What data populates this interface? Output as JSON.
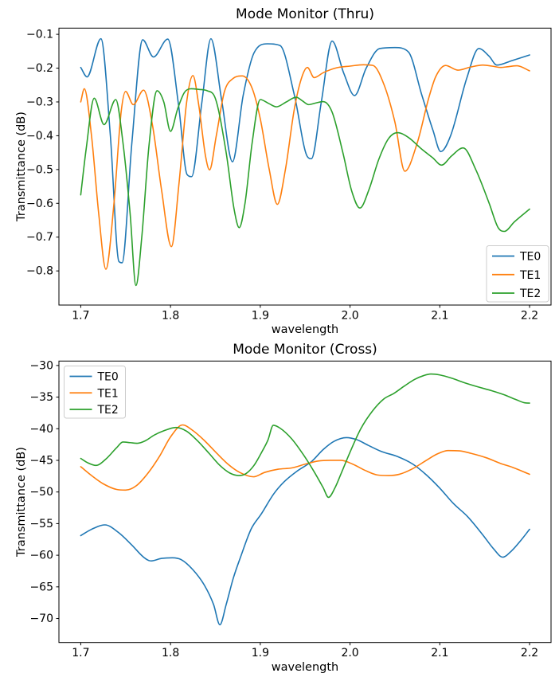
{
  "figure": {
    "background": "#ffffff"
  },
  "chart_data": [
    {
      "type": "line",
      "title": "Mode Monitor (Thru)",
      "xlabel": "wavelength",
      "ylabel": "Transmittance (dB)",
      "xlim": [
        1.6757,
        2.2239
      ],
      "ylim": [
        -0.901,
        -0.0816
      ],
      "grid": false,
      "x_ticks": {
        "values": [
          1.7,
          1.8,
          1.9,
          2.0,
          2.1,
          2.2
        ],
        "labels": [
          "1.7",
          "1.8",
          "1.9",
          "2.0",
          "2.1",
          "2.2"
        ]
      },
      "y_ticks": {
        "values": [
          -0.1,
          -0.2,
          -0.3,
          -0.4,
          -0.5,
          -0.6,
          -0.7,
          -0.8
        ],
        "labels": [
          "−0.1",
          "−0.2",
          "−0.3",
          "−0.4",
          "−0.5",
          "−0.6",
          "−0.7",
          "−0.8"
        ]
      },
      "legend": {
        "location": "lower right",
        "labels": [
          "TE0",
          "TE1",
          "TE2"
        ]
      },
      "series": [
        {
          "name": "TE0",
          "color": "#1f77b4",
          "x": [
            1.7,
            1.707,
            1.7225,
            1.733,
            1.7425,
            1.746,
            1.757,
            1.769,
            1.781,
            1.797,
            1.809,
            1.8185,
            1.8235,
            1.835,
            1.845,
            1.857,
            1.869,
            1.881,
            1.893,
            1.908,
            1.922,
            1.938,
            1.9525,
            1.957,
            1.968,
            1.98,
            1.993,
            2.005,
            2.018,
            2.033,
            2.05,
            2.065,
            2.08,
            2.0925,
            2.101,
            2.112,
            2.13,
            2.1435,
            2.155,
            2.1635,
            2.18,
            2.2
          ],
          "y": [
            -0.198,
            -0.226,
            -0.113,
            -0.4,
            -0.772,
            -0.776,
            -0.42,
            -0.116,
            -0.167,
            -0.114,
            -0.31,
            -0.515,
            -0.521,
            -0.3,
            -0.113,
            -0.295,
            -0.477,
            -0.28,
            -0.155,
            -0.128,
            -0.133,
            -0.28,
            -0.462,
            -0.468,
            -0.3,
            -0.12,
            -0.215,
            -0.281,
            -0.2,
            -0.142,
            -0.139,
            -0.152,
            -0.28,
            -0.385,
            -0.447,
            -0.4,
            -0.23,
            -0.142,
            -0.165,
            -0.191,
            -0.178,
            -0.161
          ]
        },
        {
          "name": "TE1",
          "color": "#ff7f0e",
          "x": [
            1.7,
            1.704,
            1.712,
            1.72,
            1.728,
            1.737,
            1.745,
            1.75,
            1.7585,
            1.77,
            1.78,
            1.79,
            1.801,
            1.8095,
            1.818,
            1.825,
            1.8315,
            1.839,
            1.8435,
            1.851,
            1.86,
            1.8695,
            1.88,
            1.891,
            1.9,
            1.91,
            1.919,
            1.928,
            1.938,
            1.9465,
            1.9525,
            1.96,
            1.9705,
            1.985,
            2.0,
            2.015,
            2.0255,
            2.038,
            2.05,
            2.061,
            2.075,
            2.0875,
            2.0955,
            2.1065,
            2.12,
            2.134,
            2.148,
            2.158,
            2.168,
            2.178,
            2.186,
            2.2
          ],
          "y": [
            -0.3,
            -0.261,
            -0.4,
            -0.63,
            -0.795,
            -0.6,
            -0.33,
            -0.269,
            -0.308,
            -0.265,
            -0.37,
            -0.56,
            -0.728,
            -0.54,
            -0.3,
            -0.222,
            -0.31,
            -0.46,
            -0.501,
            -0.4,
            -0.27,
            -0.231,
            -0.223,
            -0.26,
            -0.35,
            -0.5,
            -0.603,
            -0.5,
            -0.32,
            -0.225,
            -0.198,
            -0.228,
            -0.213,
            -0.199,
            -0.194,
            -0.19,
            -0.192,
            -0.25,
            -0.36,
            -0.505,
            -0.42,
            -0.29,
            -0.225,
            -0.192,
            -0.206,
            -0.197,
            -0.191,
            -0.194,
            -0.198,
            -0.195,
            -0.193,
            -0.208
          ]
        },
        {
          "name": "TE2",
          "color": "#2ca02c",
          "x": [
            1.7,
            1.706,
            1.715,
            1.726,
            1.739,
            1.747,
            1.755,
            1.7615,
            1.768,
            1.776,
            1.785,
            1.7925,
            1.8,
            1.808,
            1.8155,
            1.823,
            1.832,
            1.841,
            1.85,
            1.862,
            1.871,
            1.8765,
            1.883,
            1.891,
            1.9,
            1.909,
            1.918,
            1.929,
            1.94,
            1.947,
            1.954,
            1.962,
            1.97,
            1.98,
            1.992,
            2.002,
            2.011,
            2.021,
            2.032,
            2.043,
            2.053,
            2.065,
            2.08,
            2.092,
            2.102,
            2.113,
            2.126,
            2.14,
            2.155,
            2.165,
            2.172,
            2.183,
            2.2
          ],
          "y": [
            -0.575,
            -0.44,
            -0.289,
            -0.367,
            -0.293,
            -0.42,
            -0.63,
            -0.843,
            -0.7,
            -0.43,
            -0.267,
            -0.3,
            -0.387,
            -0.32,
            -0.272,
            -0.261,
            -0.263,
            -0.267,
            -0.29,
            -0.45,
            -0.62,
            -0.672,
            -0.6,
            -0.42,
            -0.293,
            -0.304,
            -0.3145,
            -0.3,
            -0.286,
            -0.297,
            -0.308,
            -0.303,
            -0.299,
            -0.33,
            -0.45,
            -0.565,
            -0.614,
            -0.56,
            -0.47,
            -0.408,
            -0.391,
            -0.405,
            -0.44,
            -0.465,
            -0.487,
            -0.46,
            -0.436,
            -0.5,
            -0.6,
            -0.672,
            -0.683,
            -0.655,
            -0.617
          ]
        }
      ]
    },
    {
      "type": "line",
      "title": "Mode Monitor (Cross)",
      "xlabel": "wavelength",
      "ylabel": "Transmittance (dB)",
      "xlim": [
        1.6757,
        2.2239
      ],
      "ylim": [
        -73.8,
        -29.3
      ],
      "grid": false,
      "x_ticks": {
        "values": [
          1.7,
          1.8,
          1.9,
          2.0,
          2.1,
          2.2
        ],
        "labels": [
          "1.7",
          "1.8",
          "1.9",
          "2.0",
          "2.1",
          "2.2"
        ]
      },
      "y_ticks": {
        "values": [
          -30,
          -35,
          -40,
          -45,
          -50,
          -55,
          -60,
          -65,
          -70
        ],
        "labels": [
          "−30",
          "−35",
          "−40",
          "−45",
          "−50",
          "−55",
          "−60",
          "−65",
          "−70"
        ]
      },
      "legend": {
        "location": "upper left",
        "labels": [
          "TE0",
          "TE1",
          "TE2"
        ]
      },
      "series": [
        {
          "name": "TE0",
          "color": "#1f77b4",
          "x": [
            1.7,
            1.712,
            1.727,
            1.742,
            1.757,
            1.77,
            1.778,
            1.79,
            1.802,
            1.812,
            1.825,
            1.838,
            1.848,
            1.855,
            1.862,
            1.87,
            1.878,
            1.89,
            1.901,
            1.915,
            1.9265,
            1.942,
            1.957,
            1.97,
            1.982,
            1.996,
            2.007,
            2.02,
            2.035,
            2.053,
            2.07,
            2.085,
            2.1,
            2.115,
            2.131,
            2.148,
            2.16,
            2.17,
            2.18,
            2.19,
            2.2
          ],
          "y": [
            -56.9,
            -55.9,
            -55.2,
            -56.4,
            -58.4,
            -60.3,
            -60.9,
            -60.5,
            -60.4,
            -60.7,
            -62.3,
            -64.8,
            -67.8,
            -71.0,
            -67.8,
            -63.6,
            -60.3,
            -55.8,
            -53.5,
            -50.3,
            -48.4,
            -46.6,
            -45.2,
            -43.3,
            -42.0,
            -41.4,
            -41.7,
            -42.6,
            -43.6,
            -44.4,
            -45.6,
            -47.3,
            -49.4,
            -51.8,
            -53.9,
            -56.8,
            -59.0,
            -60.3,
            -59.3,
            -57.7,
            -55.9
          ]
        },
        {
          "name": "TE1",
          "color": "#ff7f0e",
          "x": [
            1.7,
            1.712,
            1.725,
            1.74,
            1.75,
            1.762,
            1.775,
            1.788,
            1.8,
            1.8135,
            1.825,
            1.838,
            1.851,
            1.864,
            1.877,
            1.8925,
            1.905,
            1.92,
            1.935,
            1.95,
            1.9645,
            1.978,
            1.99,
            2.003,
            2.017,
            2.03,
            2.043,
            2.055,
            2.07,
            2.085,
            2.097,
            2.109,
            2.122,
            2.135,
            2.152,
            2.168,
            2.181,
            2.2
          ],
          "y": [
            -46.0,
            -47.4,
            -48.7,
            -49.6,
            -49.7,
            -49.0,
            -47.0,
            -44.3,
            -41.3,
            -39.4,
            -40.3,
            -41.9,
            -43.8,
            -45.6,
            -46.9,
            -47.6,
            -46.9,
            -46.4,
            -46.2,
            -45.6,
            -45.1,
            -45.0,
            -45.0,
            -45.6,
            -46.6,
            -47.3,
            -47.4,
            -47.2,
            -46.3,
            -45.0,
            -44.0,
            -43.45,
            -43.5,
            -43.9,
            -44.6,
            -45.5,
            -46.1,
            -47.2
          ]
        },
        {
          "name": "TE2",
          "color": "#2ca02c",
          "x": [
            1.7,
            1.708,
            1.717,
            1.728,
            1.74,
            1.747,
            1.755,
            1.763,
            1.772,
            1.782,
            1.793,
            1.806,
            1.818,
            1.83,
            1.843,
            1.855,
            1.866,
            1.876,
            1.884,
            1.893,
            1.902,
            1.9085,
            1.9145,
            1.922,
            1.935,
            1.948,
            1.96,
            1.97,
            1.976,
            1.983,
            1.99,
            2.0,
            2.012,
            2.025,
            2.0375,
            2.049,
            2.06,
            2.072,
            2.082,
            2.09,
            2.1,
            2.113,
            2.128,
            2.143,
            2.158,
            2.172,
            2.185,
            2.1945,
            2.2
          ],
          "y": [
            -44.7,
            -45.4,
            -45.8,
            -44.8,
            -43.0,
            -42.1,
            -42.2,
            -42.3,
            -41.9,
            -41.0,
            -40.3,
            -39.8,
            -40.4,
            -41.9,
            -43.9,
            -45.8,
            -47.0,
            -47.4,
            -47.1,
            -45.8,
            -43.6,
            -41.8,
            -39.45,
            -39.9,
            -41.6,
            -44.1,
            -46.8,
            -49.3,
            -50.85,
            -49.4,
            -47.1,
            -43.7,
            -40.0,
            -37.2,
            -35.3,
            -34.4,
            -33.3,
            -32.2,
            -31.6,
            -31.35,
            -31.5,
            -32.0,
            -32.75,
            -33.4,
            -34.0,
            -34.65,
            -35.4,
            -35.9,
            -35.95
          ]
        }
      ]
    }
  ]
}
